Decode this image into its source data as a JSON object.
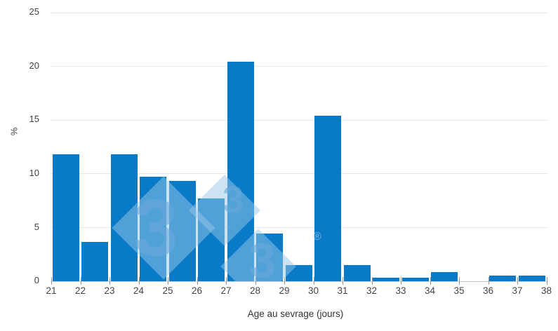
{
  "colors": {
    "background": "#ffffff",
    "accent_bar": "#087ac8",
    "gridline": "#e6e6e6",
    "axis_line": "#c8c8c8",
    "tick": "#9a9a9a",
    "tick_label": "#444444",
    "axis_title": "#333333",
    "watermark": "#9ac7ea",
    "watermark_glyph": "#6aa8d9"
  },
  "watermark": {
    "glyphs": [
      "3",
      "3",
      "3"
    ],
    "registered_symbol": "®"
  },
  "chart_data": {
    "type": "bar",
    "subtype": "histogram",
    "title": "",
    "xlabel": "Age au sevrage (jours)",
    "ylabel": "%",
    "bin_starts": [
      21,
      22,
      23,
      24,
      25,
      26,
      27,
      28,
      29,
      30,
      31,
      32,
      33,
      34,
      35,
      36,
      37
    ],
    "values": [
      11.8,
      3.6,
      11.8,
      9.7,
      9.3,
      7.7,
      20.4,
      4.4,
      1.5,
      15.4,
      1.5,
      0.3,
      0.3,
      0.8,
      0,
      0.5,
      0.5
    ],
    "x_tick_labels": [
      "21",
      "22",
      "23",
      "24",
      "25",
      "26",
      "27",
      "28",
      "29",
      "30",
      "31",
      "32",
      "33",
      "34",
      "35",
      "36",
      "37",
      "38"
    ],
    "y_ticks": [
      0,
      5,
      10,
      15,
      20,
      25
    ],
    "xlim": [
      21,
      38
    ],
    "ylim": [
      0,
      25
    ],
    "grid": true,
    "legend": false,
    "bar_color": "#087ac8"
  }
}
